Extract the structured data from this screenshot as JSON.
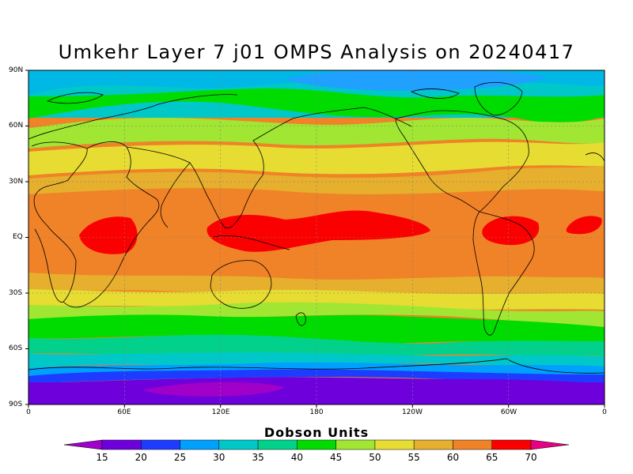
{
  "title": "Umkehr Layer 7 j01 OMPS Analysis on 20240417",
  "colorbar": {
    "title": "Dobson Units",
    "labels": [
      "15",
      "20",
      "25",
      "30",
      "35",
      "40",
      "45",
      "50",
      "55",
      "60",
      "65",
      "70"
    ],
    "colors": [
      "#a000c8",
      "#6e00dc",
      "#1e3cff",
      "#00a0ff",
      "#00c8c8",
      "#00d28c",
      "#00dc00",
      "#a0e632",
      "#e6dc32",
      "#e6af2d",
      "#f08228",
      "#fa0000",
      "#e60082"
    ]
  },
  "axes": {
    "lat_labels": [
      "90N",
      "60N",
      "30N",
      "EQ",
      "30S",
      "60S",
      "90S"
    ],
    "lon_labels": [
      "0",
      "60E",
      "120E",
      "180",
      "120W",
      "60W",
      "0"
    ]
  }
}
